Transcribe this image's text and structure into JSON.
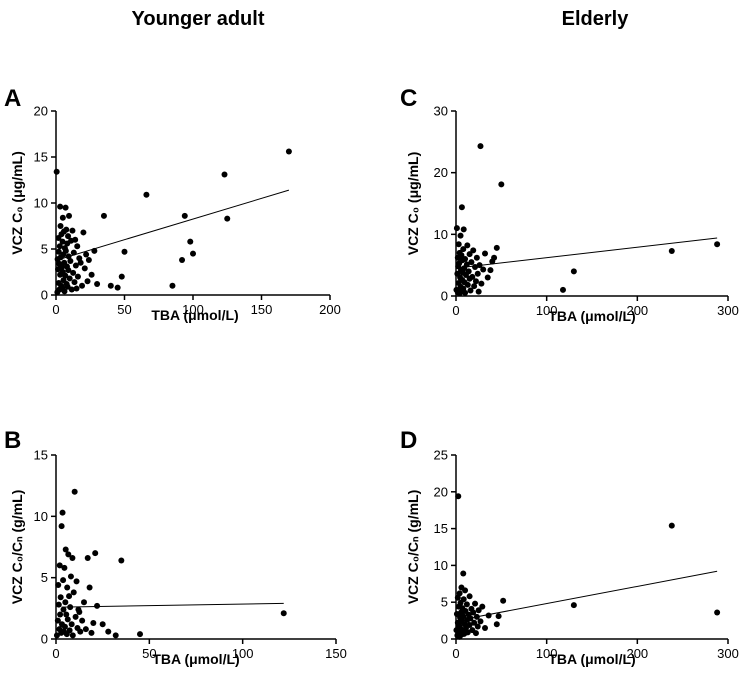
{
  "column_titles": [
    "Younger adult",
    "Elderly"
  ],
  "chart_data": [
    {
      "panel": "A",
      "type": "scatter",
      "xlabel": "TBA (μmol/L)",
      "ylabel": "VCZ C₀ (μg/mL)",
      "xlim": [
        0,
        200
      ],
      "ylim": [
        0,
        20
      ],
      "xticks": [
        0,
        50,
        100,
        150,
        200
      ],
      "yticks": [
        0,
        5,
        10,
        15,
        20
      ],
      "trend_line": [
        [
          3,
          3.9
        ],
        [
          170,
          11.4
        ]
      ],
      "points": [
        [
          0.5,
          13.4
        ],
        [
          1,
          0.3
        ],
        [
          1.2,
          3.9
        ],
        [
          1.5,
          2.8
        ],
        [
          1.8,
          6.2
        ],
        [
          2,
          4.7
        ],
        [
          2,
          1.3
        ],
        [
          2.3,
          3.4
        ],
        [
          2.5,
          0.6
        ],
        [
          2.8,
          5.3
        ],
        [
          3,
          2.2
        ],
        [
          3,
          9.6
        ],
        [
          3.3,
          7.5
        ],
        [
          3.5,
          4.1
        ],
        [
          3.8,
          1.0
        ],
        [
          4,
          6.6
        ],
        [
          4.2,
          3.0
        ],
        [
          4.5,
          0.8
        ],
        [
          4.8,
          5.8
        ],
        [
          5,
          2.5
        ],
        [
          5,
          8.4
        ],
        [
          5.3,
          4.4
        ],
        [
          5.5,
          1.6
        ],
        [
          5.8,
          6.9
        ],
        [
          6,
          3.5
        ],
        [
          6.2,
          0.4
        ],
        [
          6.5,
          5.1
        ],
        [
          6.8,
          2.1
        ],
        [
          7,
          9.5
        ],
        [
          7.2,
          4.8
        ],
        [
          7.5,
          7.1
        ],
        [
          7.8,
          1.2
        ],
        [
          8,
          3.1
        ],
        [
          8.2,
          5.6
        ],
        [
          8.5,
          0.9
        ],
        [
          8.8,
          6.4
        ],
        [
          9,
          2.7
        ],
        [
          9.2,
          4.2
        ],
        [
          9.5,
          8.6
        ],
        [
          10,
          1.8
        ],
        [
          10.5,
          3.7
        ],
        [
          11,
          5.9
        ],
        [
          11.5,
          0.6
        ],
        [
          12,
          7.0
        ],
        [
          12.5,
          2.4
        ],
        [
          13,
          4.6
        ],
        [
          13.5,
          1.4
        ],
        [
          14,
          6.0
        ],
        [
          14.5,
          3.2
        ],
        [
          15,
          0.7
        ],
        [
          15.5,
          5.3
        ],
        [
          16,
          2.0
        ],
        [
          17,
          4.0
        ],
        [
          18,
          3.5
        ],
        [
          19,
          1.0
        ],
        [
          20,
          6.8
        ],
        [
          21,
          2.9
        ],
        [
          22,
          4.4
        ],
        [
          23,
          1.5
        ],
        [
          24,
          3.8
        ],
        [
          26,
          2.2
        ],
        [
          28,
          4.8
        ],
        [
          30,
          1.2
        ],
        [
          35,
          8.6
        ],
        [
          40,
          1.0
        ],
        [
          45,
          0.8
        ],
        [
          48,
          2.0
        ],
        [
          50,
          4.7
        ],
        [
          66,
          10.9
        ],
        [
          85,
          1.0
        ],
        [
          92,
          3.8
        ],
        [
          94,
          8.6
        ],
        [
          98,
          5.8
        ],
        [
          100,
          4.5
        ],
        [
          123,
          13.1
        ],
        [
          125,
          8.3
        ],
        [
          170,
          15.6
        ]
      ]
    },
    {
      "panel": "B",
      "type": "scatter",
      "xlabel": "TBA (μmol/L)",
      "ylabel": "VCZ C₀/Cₙ (g/mL)",
      "xlim": [
        0,
        150
      ],
      "ylim": [
        0,
        15
      ],
      "xticks": [
        0,
        50,
        100,
        150
      ],
      "yticks": [
        0,
        5,
        10,
        15
      ],
      "trend_line": [
        [
          3,
          2.6
        ],
        [
          122,
          2.9
        ]
      ],
      "points": [
        [
          0.5,
          0.3
        ],
        [
          1,
          1.5
        ],
        [
          1.2,
          4.4
        ],
        [
          1.5,
          2.8
        ],
        [
          1.8,
          0.8
        ],
        [
          2,
          6.0
        ],
        [
          2.2,
          2.0
        ],
        [
          2.5,
          3.4
        ],
        [
          2.8,
          0.5
        ],
        [
          3,
          9.2
        ],
        [
          3.2,
          1.2
        ],
        [
          3.5,
          10.3
        ],
        [
          3.8,
          4.8
        ],
        [
          4,
          2.4
        ],
        [
          4.2,
          0.6
        ],
        [
          4.5,
          5.8
        ],
        [
          4.8,
          1.0
        ],
        [
          5,
          3.0
        ],
        [
          5.2,
          7.3
        ],
        [
          5.5,
          2.0
        ],
        [
          5.8,
          0.4
        ],
        [
          6,
          4.2
        ],
        [
          6.3,
          1.6
        ],
        [
          6.6,
          6.9
        ],
        [
          7,
          3.5
        ],
        [
          7.3,
          0.7
        ],
        [
          7.6,
          2.6
        ],
        [
          8,
          5.1
        ],
        [
          8.4,
          1.2
        ],
        [
          8.8,
          6.6
        ],
        [
          9,
          0.3
        ],
        [
          9.5,
          3.8
        ],
        [
          10,
          12.0
        ],
        [
          10.5,
          1.8
        ],
        [
          11,
          4.7
        ],
        [
          11.5,
          0.9
        ],
        [
          12,
          2.4
        ],
        [
          12.5,
          2.2
        ],
        [
          13,
          0.6
        ],
        [
          14,
          1.5
        ],
        [
          15,
          3.0
        ],
        [
          16,
          0.8
        ],
        [
          17,
          6.6
        ],
        [
          18,
          4.2
        ],
        [
          19,
          0.5
        ],
        [
          20,
          1.3
        ],
        [
          21,
          7.0
        ],
        [
          22,
          2.7
        ],
        [
          25,
          1.2
        ],
        [
          28,
          0.6
        ],
        [
          32,
          0.3
        ],
        [
          35,
          6.4
        ],
        [
          45,
          0.4
        ],
        [
          122,
          2.1
        ]
      ]
    },
    {
      "panel": "C",
      "type": "scatter",
      "xlabel": "TBA (μmol/L)",
      "ylabel": "VCZ C₀ (μg/mL)",
      "xlim": [
        0,
        300
      ],
      "ylim": [
        0,
        30
      ],
      "xticks": [
        0,
        100,
        200,
        300
      ],
      "yticks": [
        0,
        10,
        20,
        30
      ],
      "trend_line": [
        [
          5,
          4.6
        ],
        [
          288,
          9.4
        ]
      ],
      "points": [
        [
          0.5,
          1.0
        ],
        [
          1,
          11.0
        ],
        [
          1.5,
          3.6
        ],
        [
          2,
          6.2
        ],
        [
          2,
          0.6
        ],
        [
          2.5,
          4.8
        ],
        [
          3,
          2.1
        ],
        [
          3,
          8.4
        ],
        [
          3.5,
          5.3
        ],
        [
          4,
          0.4
        ],
        [
          4,
          7.0
        ],
        [
          4.5,
          3.0
        ],
        [
          5,
          9.8
        ],
        [
          5,
          1.5
        ],
        [
          5.5,
          4.2
        ],
        [
          6,
          6.6
        ],
        [
          6,
          0.8
        ],
        [
          6.5,
          14.4
        ],
        [
          7,
          2.6
        ],
        [
          7,
          5.8
        ],
        [
          7.5,
          3.8
        ],
        [
          8,
          1.2
        ],
        [
          8,
          7.6
        ],
        [
          8.5,
          10.8
        ],
        [
          9,
          4.5
        ],
        [
          9.5,
          2.2
        ],
        [
          10,
          6.0
        ],
        [
          10,
          0.5
        ],
        [
          11,
          3.4
        ],
        [
          12,
          5.1
        ],
        [
          12.5,
          8.2
        ],
        [
          13,
          1.8
        ],
        [
          14,
          4.0
        ],
        [
          15,
          6.8
        ],
        [
          15,
          2.8
        ],
        [
          16,
          0.9
        ],
        [
          17,
          5.5
        ],
        [
          18,
          3.1
        ],
        [
          19,
          7.4
        ],
        [
          20,
          1.6
        ],
        [
          21,
          4.7
        ],
        [
          22,
          2.4
        ],
        [
          23,
          6.2
        ],
        [
          24,
          3.6
        ],
        [
          25,
          0.7
        ],
        [
          26,
          5.0
        ],
        [
          27,
          24.3
        ],
        [
          28,
          2.0
        ],
        [
          30,
          4.3
        ],
        [
          32,
          6.9
        ],
        [
          35,
          3.0
        ],
        [
          38,
          4.2
        ],
        [
          40,
          5.6
        ],
        [
          42,
          6.2
        ],
        [
          45,
          7.8
        ],
        [
          50,
          18.1
        ],
        [
          118,
          1.0
        ],
        [
          130,
          4.0
        ],
        [
          238,
          7.3
        ],
        [
          288,
          8.4
        ]
      ]
    },
    {
      "panel": "D",
      "type": "scatter",
      "xlabel": "TBA (μmol/L)",
      "ylabel": "VCZ C₀/Cₙ (g/mL)",
      "xlim": [
        0,
        300
      ],
      "ylim": [
        0,
        25
      ],
      "xticks": [
        0,
        100,
        200,
        300
      ],
      "yticks": [
        0,
        5,
        10,
        15,
        20,
        25
      ],
      "trend_line": [
        [
          5,
          2.6
        ],
        [
          288,
          9.2
        ]
      ],
      "points": [
        [
          0.5,
          1.2
        ],
        [
          1,
          3.4
        ],
        [
          1.5,
          0.5
        ],
        [
          2,
          5.6
        ],
        [
          2,
          2.2
        ],
        [
          2.5,
          19.4
        ],
        [
          3,
          0.8
        ],
        [
          3,
          4.4
        ],
        [
          3.5,
          1.8
        ],
        [
          4,
          6.2
        ],
        [
          4,
          0.3
        ],
        [
          4.5,
          2.9
        ],
        [
          5,
          4.9
        ],
        [
          5,
          1.4
        ],
        [
          5.5,
          3.6
        ],
        [
          6,
          0.6
        ],
        [
          6,
          7.0
        ],
        [
          6.5,
          2.4
        ],
        [
          7,
          4.2
        ],
        [
          7.5,
          1.0
        ],
        [
          8,
          8.9
        ],
        [
          8,
          3.1
        ],
        [
          8.5,
          5.4
        ],
        [
          9,
          0.7
        ],
        [
          9.5,
          2.0
        ],
        [
          10,
          6.6
        ],
        [
          10.5,
          3.8
        ],
        [
          11,
          1.5
        ],
        [
          12,
          4.7
        ],
        [
          12.5,
          2.6
        ],
        [
          13,
          0.9
        ],
        [
          14,
          3.3
        ],
        [
          15,
          5.8
        ],
        [
          15,
          1.9
        ],
        [
          16,
          2.8
        ],
        [
          17,
          4.1
        ],
        [
          18,
          1.2
        ],
        [
          19,
          3.6
        ],
        [
          20,
          2.2
        ],
        [
          21,
          4.8
        ],
        [
          22,
          0.8
        ],
        [
          23,
          3.0
        ],
        [
          24,
          1.7
        ],
        [
          25,
          3.9
        ],
        [
          27,
          2.4
        ],
        [
          29,
          4.4
        ],
        [
          32,
          1.5
        ],
        [
          36,
          3.2
        ],
        [
          45,
          2.0
        ],
        [
          47,
          3.1
        ],
        [
          52,
          5.2
        ],
        [
          130,
          4.6
        ],
        [
          238,
          15.4
        ],
        [
          288,
          3.6
        ]
      ]
    }
  ]
}
